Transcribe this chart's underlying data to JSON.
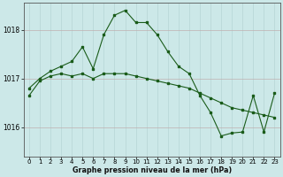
{
  "xlabel": "Graphe pression niveau de la mer (hPa)",
  "background_color": "#cce8e8",
  "line_color": "#1a5c1a",
  "xlim": [
    -0.5,
    23.5
  ],
  "ylim": [
    1015.4,
    1018.55
  ],
  "yticks": [
    1016,
    1017,
    1018
  ],
  "xticks": [
    0,
    1,
    2,
    3,
    4,
    5,
    6,
    7,
    8,
    9,
    10,
    11,
    12,
    13,
    14,
    15,
    16,
    17,
    18,
    19,
    20,
    21,
    22,
    23
  ],
  "series1_x": [
    0,
    1,
    2,
    3,
    4,
    5,
    6,
    7,
    8,
    9,
    10,
    11,
    12,
    13,
    14,
    15,
    16,
    17,
    18,
    19,
    20,
    21,
    22,
    23
  ],
  "series1_y": [
    1016.8,
    1017.0,
    1017.15,
    1017.25,
    1017.35,
    1017.65,
    1017.2,
    1017.9,
    1018.3,
    1018.4,
    1018.15,
    1018.15,
    1017.9,
    1017.55,
    1017.25,
    1017.1,
    1016.65,
    1016.3,
    1015.82,
    1015.88,
    1015.9,
    1016.65,
    1015.9,
    1016.7
  ],
  "series2_x": [
    0,
    1,
    2,
    3,
    4,
    5,
    6,
    7,
    8,
    9,
    10,
    11,
    12,
    13,
    14,
    15,
    16,
    17,
    18,
    19,
    20,
    21,
    22,
    23
  ],
  "series2_y": [
    1016.65,
    1016.95,
    1017.05,
    1017.1,
    1017.05,
    1017.1,
    1017.0,
    1017.1,
    1017.1,
    1017.1,
    1017.05,
    1017.0,
    1016.95,
    1016.9,
    1016.85,
    1016.8,
    1016.7,
    1016.6,
    1016.5,
    1016.4,
    1016.35,
    1016.3,
    1016.25,
    1016.2
  ],
  "vgrid_color": "#b0d0d0",
  "hgrid_color": "#c0b0b0",
  "marker_size": 2.0
}
